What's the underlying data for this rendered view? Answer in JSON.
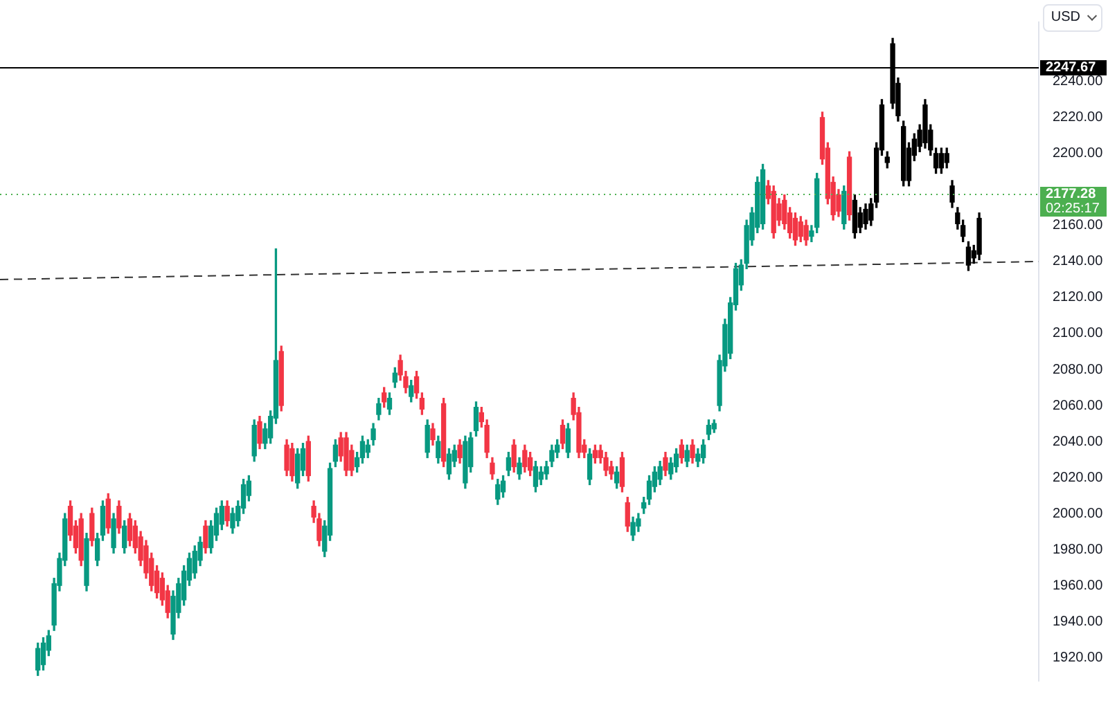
{
  "chart_data": {
    "type": "candlestick",
    "categories": [
      null,
      null,
      null,
      null,
      null,
      null,
      null,
      null,
      null,
      null,
      null,
      null,
      null,
      null,
      null,
      null,
      null,
      null,
      null,
      null,
      null,
      null,
      null,
      null,
      null,
      null,
      null,
      null,
      null,
      null,
      null,
      null,
      null,
      null,
      null,
      null,
      null,
      null,
      null,
      null,
      null,
      null,
      null,
      null,
      null,
      null,
      null,
      null,
      null,
      null,
      null,
      null,
      null,
      null,
      null,
      null,
      null,
      null,
      null,
      null,
      null,
      null,
      null,
      null,
      null,
      null,
      null,
      null,
      null,
      null,
      null,
      null,
      null,
      null,
      null,
      null,
      null,
      null,
      null,
      null,
      null,
      null,
      null,
      null,
      null,
      null,
      null,
      null,
      null,
      null,
      null,
      null,
      null,
      null,
      null,
      null,
      null,
      null,
      null,
      null,
      null,
      null,
      null,
      null,
      null,
      null,
      null,
      null,
      null,
      null,
      null,
      null,
      null,
      null,
      null,
      null,
      null,
      null,
      null,
      null,
      null,
      null,
      null,
      null,
      null,
      null,
      null,
      null,
      null,
      null,
      null,
      null,
      null,
      null,
      null,
      null,
      null,
      null,
      null,
      null,
      null,
      null,
      null,
      null,
      null,
      null,
      null,
      null,
      null,
      null,
      null,
      null,
      null,
      null,
      null,
      null,
      null,
      null,
      null,
      null,
      null,
      null,
      null,
      null,
      null,
      null,
      null,
      null,
      null,
      null,
      null,
      null,
      null,
      null,
      null,
      null,
      null,
      null,
      null,
      null,
      null,
      null,
      null,
      null,
      null,
      null,
      null,
      null,
      null,
      null,
      null,
      null,
      null
    ],
    "ohlc": [
      null,
      null,
      null,
      null,
      null,
      null,
      null,
      [
        1913,
        1928,
        1910,
        1925
      ],
      [
        1916,
        1931,
        1913,
        1928
      ],
      [
        1924,
        1935,
        1921,
        1932
      ],
      [
        1938,
        1964,
        1935,
        1961
      ],
      [
        1960,
        1978,
        1957,
        1975
      ],
      [
        1974,
        2000,
        1971,
        1997
      ],
      [
        2004,
        2007,
        1985,
        1988
      ],
      [
        1993,
        1996,
        1978,
        1981
      ],
      [
        1997,
        2000,
        1971,
        1974
      ],
      [
        1960,
        1989,
        1957,
        1986
      ],
      [
        2000,
        2003,
        1982,
        1985
      ],
      [
        1974,
        1989,
        1971,
        1986
      ],
      [
        1988,
        2007,
        1985,
        2004
      ],
      [
        2008,
        2011,
        1989,
        1992
      ],
      [
        1981,
        2000,
        1978,
        1997
      ],
      [
        2004,
        2007,
        1989,
        1992
      ],
      [
        1981,
        1996,
        1978,
        1993
      ],
      [
        1997,
        2000,
        1982,
        1985
      ],
      [
        1993,
        1996,
        1978,
        1981
      ],
      [
        1987,
        1990,
        1971,
        1974
      ],
      [
        1982,
        1985,
        1964,
        1967
      ],
      [
        1975,
        1978,
        1957,
        1960
      ],
      [
        1968,
        1971,
        1953,
        1956
      ],
      [
        1964,
        1967,
        1949,
        1952
      ],
      [
        1957,
        1960,
        1942,
        1945
      ],
      [
        1933,
        1957,
        1930,
        1954
      ],
      [
        1945,
        1964,
        1942,
        1961
      ],
      [
        1952,
        1971,
        1949,
        1968
      ],
      [
        1963,
        1978,
        1960,
        1975
      ],
      [
        1967,
        1982,
        1964,
        1979
      ],
      [
        1974,
        1987,
        1971,
        1984
      ],
      [
        1993,
        1996,
        1978,
        1981
      ],
      [
        1981,
        1996,
        1978,
        1993
      ],
      [
        1988,
        2003,
        1985,
        2000
      ],
      [
        1994,
        2007,
        1991,
        2004
      ],
      [
        2004,
        2007,
        1993,
        1996
      ],
      [
        1992,
        2003,
        1989,
        2000
      ],
      [
        1996,
        2007,
        1993,
        2004
      ],
      [
        2003,
        2019,
        2000,
        2016
      ],
      [
        2010,
        2021,
        2007,
        2018
      ],
      [
        2032,
        2052,
        2029,
        2049
      ],
      [
        2051,
        2054,
        2036,
        2039
      ],
      [
        2039,
        2050,
        2036,
        2047
      ],
      [
        2042,
        2057,
        2039,
        2054
      ],
      [
        2053,
        2147,
        2050,
        2085
      ],
      [
        2090,
        2093,
        2057,
        2060
      ],
      [
        2038,
        2041,
        2021,
        2024
      ],
      [
        2036,
        2039,
        2018,
        2021
      ],
      [
        2017,
        2036,
        2014,
        2033
      ],
      [
        2024,
        2039,
        2021,
        2036
      ],
      [
        2040,
        2043,
        2018,
        2021
      ],
      [
        2004,
        2007,
        1995,
        1998
      ],
      [
        1997,
        2000,
        1982,
        1985
      ],
      [
        1979,
        1996,
        1976,
        1993
      ],
      [
        1988,
        2028,
        1985,
        2025
      ],
      [
        2029,
        2041,
        2026,
        2038
      ],
      [
        2042,
        2045,
        2029,
        2032
      ],
      [
        2042,
        2045,
        2021,
        2024
      ],
      [
        2035,
        2038,
        2021,
        2024
      ],
      [
        2026,
        2034,
        2023,
        2031
      ],
      [
        2031,
        2043,
        2028,
        2040
      ],
      [
        2034,
        2041,
        2031,
        2038
      ],
      [
        2041,
        2050,
        2038,
        2047
      ],
      [
        2055,
        2064,
        2052,
        2061
      ],
      [
        2067,
        2070,
        2059,
        2062
      ],
      [
        2058,
        2067,
        2055,
        2064
      ],
      [
        2073,
        2081,
        2070,
        2078
      ],
      [
        2085,
        2088,
        2074,
        2077
      ],
      [
        2076,
        2079,
        2067,
        2070
      ],
      [
        2065,
        2074,
        2062,
        2071
      ],
      [
        2076,
        2079,
        2064,
        2067
      ],
      [
        2064,
        2067,
        2055,
        2058
      ],
      [
        2034,
        2052,
        2031,
        2049
      ],
      [
        2047,
        2050,
        2038,
        2041
      ],
      [
        2031,
        2043,
        2028,
        2040
      ],
      [
        2061,
        2064,
        2026,
        2029
      ],
      [
        2022,
        2036,
        2019,
        2033
      ],
      [
        2029,
        2038,
        2026,
        2035
      ],
      [
        2038,
        2041,
        2028,
        2031
      ],
      [
        2017,
        2043,
        2014,
        2040
      ],
      [
        2026,
        2045,
        2023,
        2042
      ],
      [
        2046,
        2062,
        2043,
        2059
      ],
      [
        2056,
        2059,
        2048,
        2051
      ],
      [
        2049,
        2052,
        2031,
        2034
      ],
      [
        2028,
        2031,
        2019,
        2022
      ],
      [
        2008,
        2019,
        2005,
        2016
      ],
      [
        2012,
        2021,
        2009,
        2018
      ],
      [
        2024,
        2034,
        2021,
        2031
      ],
      [
        2038,
        2041,
        2023,
        2026
      ],
      [
        2022,
        2031,
        2019,
        2028
      ],
      [
        2035,
        2038,
        2023,
        2026
      ],
      [
        2031,
        2034,
        2021,
        2024
      ],
      [
        2015,
        2029,
        2012,
        2026
      ],
      [
        2019,
        2026,
        2016,
        2023
      ],
      [
        2022,
        2029,
        2019,
        2026
      ],
      [
        2029,
        2038,
        2026,
        2035
      ],
      [
        2034,
        2041,
        2031,
        2038
      ],
      [
        2049,
        2052,
        2036,
        2039
      ],
      [
        2034,
        2050,
        2031,
        2047
      ],
      [
        2064,
        2067,
        2052,
        2055
      ],
      [
        2056,
        2059,
        2031,
        2034
      ],
      [
        2038,
        2041,
        2031,
        2034
      ],
      [
        2019,
        2036,
        2016,
        2033
      ],
      [
        2035,
        2038,
        2028,
        2031
      ],
      [
        2035,
        2038,
        2028,
        2031
      ],
      [
        2031,
        2034,
        2021,
        2024
      ],
      [
        2026,
        2029,
        2019,
        2022
      ],
      [
        2017,
        2026,
        2014,
        2023
      ],
      [
        2031,
        2034,
        2012,
        2015
      ],
      [
        2006,
        2009,
        1990,
        1993
      ],
      [
        1988,
        1998,
        1985,
        1995
      ],
      [
        1993,
        2000,
        1990,
        1997
      ],
      [
        2003,
        2009,
        2000,
        2006
      ],
      [
        2008,
        2021,
        2005,
        2018
      ],
      [
        2015,
        2026,
        2012,
        2023
      ],
      [
        2019,
        2029,
        2016,
        2026
      ],
      [
        2031,
        2034,
        2021,
        2024
      ],
      [
        2022,
        2031,
        2019,
        2028
      ],
      [
        2026,
        2036,
        2023,
        2033
      ],
      [
        2038,
        2041,
        2028,
        2031
      ],
      [
        2029,
        2038,
        2026,
        2035
      ],
      [
        2038,
        2041,
        2028,
        2031
      ],
      [
        2029,
        2036,
        2026,
        2033
      ],
      [
        2031,
        2041,
        2028,
        2038
      ],
      [
        2044,
        2052,
        2041,
        2049
      ],
      [
        2047,
        2052,
        2045,
        2050
      ],
      [
        2060,
        2088,
        2057,
        2085
      ],
      [
        2082,
        2108,
        2079,
        2105
      ],
      [
        2089,
        2120,
        2086,
        2117
      ],
      [
        2116,
        2139,
        2113,
        2136
      ],
      [
        2127,
        2141,
        2124,
        2138
      ],
      [
        2139,
        2163,
        2136,
        2160
      ],
      [
        2152,
        2170,
        2149,
        2167
      ],
      [
        2159,
        2187,
        2156,
        2184
      ],
      [
        2161,
        2194,
        2158,
        2191
      ],
      [
        2182,
        2185,
        2172,
        2175
      ],
      [
        2179,
        2182,
        2153,
        2156
      ],
      [
        2172,
        2175,
        2160,
        2163
      ],
      [
        2174,
        2177,
        2158,
        2161
      ],
      [
        2167,
        2170,
        2153,
        2156
      ],
      [
        2164,
        2167,
        2149,
        2152
      ],
      [
        2162,
        2165,
        2151,
        2154
      ],
      [
        2160,
        2163,
        2149,
        2152
      ],
      [
        2154,
        2160,
        2151,
        2157
      ],
      [
        2159,
        2189,
        2156,
        2186
      ],
      [
        2220,
        2223,
        2194,
        2197
      ],
      [
        2203,
        2206,
        2172,
        2175
      ],
      [
        2184,
        2187,
        2163,
        2166
      ],
      [
        2177,
        2180,
        2165,
        2168
      ],
      [
        2161,
        2182,
        2158,
        2179
      ],
      [
        2198,
        2201,
        2163,
        2166
      ],
      [
        2174,
        2177,
        2153,
        2156
      ],
      [
        2159,
        2170,
        2156,
        2167
      ],
      [
        2161,
        2172,
        2158,
        2169
      ],
      [
        2163,
        2175,
        2160,
        2172
      ],
      [
        2173,
        2206,
        2170,
        2203
      ],
      [
        2227,
        2230,
        2199,
        2202
      ],
      [
        2195,
        2201,
        2192,
        2198
      ],
      [
        2261,
        2264,
        2225,
        2228
      ],
      [
        2239,
        2242,
        2218,
        2221
      ],
      [
        2215,
        2218,
        2182,
        2185
      ],
      [
        2185,
        2206,
        2182,
        2203
      ],
      [
        2199,
        2211,
        2196,
        2208
      ],
      [
        2204,
        2216,
        2201,
        2213
      ],
      [
        2227,
        2230,
        2203,
        2206
      ],
      [
        2213,
        2216,
        2199,
        2202
      ],
      [
        2200,
        2203,
        2189,
        2192
      ],
      [
        2192,
        2203,
        2189,
        2200
      ],
      [
        2200,
        2203,
        2192,
        2195
      ],
      [
        2182,
        2185,
        2170,
        2173
      ],
      [
        2167,
        2170,
        2158,
        2161
      ],
      [
        2160,
        2163,
        2151,
        2154
      ],
      [
        2138,
        2151,
        2135,
        2148
      ],
      [
        2142,
        2149,
        2139,
        2146
      ],
      [
        2144,
        2167,
        2141,
        2164
      ],
      null,
      null,
      null,
      null,
      null,
      null,
      null,
      null,
      null,
      null,
      null
    ],
    "colors": [
      null,
      null,
      null,
      null,
      null,
      null,
      null,
      "#089981",
      "#089981",
      "#089981",
      "#089981",
      "#089981",
      "#089981",
      "#f23645",
      "#f23645",
      "#f23645",
      "#089981",
      "#f23645",
      "#089981",
      "#089981",
      "#f23645",
      "#089981",
      "#f23645",
      "#089981",
      "#f23645",
      "#f23645",
      "#f23645",
      "#f23645",
      "#f23645",
      "#f23645",
      "#f23645",
      "#f23645",
      "#089981",
      "#089981",
      "#089981",
      "#089981",
      "#089981",
      "#089981",
      "#f23645",
      "#089981",
      "#089981",
      "#089981",
      "#f23645",
      "#089981",
      "#089981",
      "#089981",
      "#089981",
      "#089981",
      "#f23645",
      "#089981",
      "#089981",
      "#089981",
      "#f23645",
      "#f23645",
      "#f23645",
      "#089981",
      "#089981",
      "#f23645",
      "#f23645",
      "#f23645",
      "#089981",
      "#089981",
      "#089981",
      "#f23645",
      "#f23645",
      "#f23645",
      "#089981",
      "#089981",
      "#089981",
      "#089981",
      "#089981",
      "#f23645",
      "#089981",
      "#089981",
      "#f23645",
      "#f23645",
      "#089981",
      "#f23645",
      "#f23645",
      "#089981",
      "#f23645",
      "#089981",
      "#f23645",
      "#089981",
      "#089981",
      "#f23645",
      "#089981",
      "#089981",
      "#089981",
      "#f23645",
      "#f23645",
      "#f23645",
      "#089981",
      "#089981",
      "#089981",
      "#f23645",
      "#089981",
      "#f23645",
      "#f23645",
      "#089981",
      "#089981",
      "#089981",
      "#089981",
      "#089981",
      "#f23645",
      "#089981",
      "#f23645",
      "#f23645",
      "#f23645",
      "#089981",
      "#f23645",
      "#f23645",
      "#f23645",
      "#f23645",
      "#089981",
      "#f23645",
      "#f23645",
      "#089981",
      "#089981",
      "#089981",
      "#089981",
      "#089981",
      "#089981",
      "#f23645",
      "#089981",
      "#089981",
      "#f23645",
      "#089981",
      "#f23645",
      "#089981",
      "#089981",
      "#089981",
      "#089981",
      "#089981",
      "#089981",
      "#089981",
      "#089981",
      "#089981",
      "#089981",
      "#089981",
      "#089981",
      "#089981",
      "#f23645",
      "#f23645",
      "#f23645",
      "#f23645",
      "#f23645",
      "#f23645",
      "#f23645",
      "#f23645",
      "#089981",
      "#089981",
      "#f23645",
      "#f23645",
      "#f23645",
      "#f23645",
      "#089981",
      "#f23645",
      "#000000",
      "#000000",
      "#000000",
      "#000000",
      "#000000",
      "#000000",
      "#000000",
      "#000000",
      "#000000",
      "#000000",
      "#000000",
      "#000000",
      "#000000",
      "#000000",
      "#000000",
      "#000000",
      "#000000",
      "#000000",
      "#000000",
      "#000000",
      "#000000",
      "#000000",
      "#000000",
      "#000000",
      null,
      null,
      null,
      null,
      null,
      null,
      null,
      null,
      null,
      null,
      null
    ],
    "series": [
      {
        "type": "line",
        "color": "#333333",
        "line_style": "dashed",
        "values": [
          2130,
          null,
          null,
          null,
          null,
          null,
          null,
          null,
          null,
          null,
          null,
          null,
          null,
          null,
          null,
          null,
          null,
          null,
          null,
          null,
          null,
          null,
          null,
          null,
          null,
          null,
          null,
          null,
          null,
          null,
          null,
          null,
          null,
          null,
          null,
          null,
          null,
          null,
          null,
          null,
          null,
          null,
          null,
          null,
          null,
          null,
          null,
          null,
          null,
          null,
          null,
          null,
          null,
          null,
          null,
          null,
          null,
          null,
          null,
          null,
          null,
          null,
          null,
          null,
          null,
          null,
          null,
          null,
          null,
          null,
          null,
          null,
          null,
          null,
          null,
          null,
          null,
          null,
          null,
          null,
          null,
          null,
          null,
          null,
          null,
          null,
          null,
          null,
          null,
          null,
          null,
          null,
          null,
          null,
          null,
          null,
          null,
          null,
          null,
          null,
          null,
          null,
          null,
          null,
          null,
          null,
          null,
          null,
          null,
          null,
          null,
          null,
          null,
          null,
          null,
          null,
          null,
          null,
          null,
          null,
          null,
          null,
          null,
          null,
          null,
          null,
          null,
          null,
          null,
          null,
          null,
          null,
          null,
          null,
          null,
          null,
          null,
          null,
          null,
          null,
          null,
          null,
          null,
          null,
          null,
          null,
          null,
          null,
          null,
          null,
          null,
          null,
          null,
          null,
          null,
          null,
          null,
          null,
          null,
          null,
          null,
          null,
          null,
          null,
          null,
          null,
          null,
          null,
          null,
          null,
          null,
          null,
          null,
          null,
          null,
          null,
          null,
          null,
          null,
          null,
          null,
          null,
          null,
          null,
          null,
          null,
          null,
          null,
          null,
          null,
          null,
          null,
          2140
        ]
      }
    ],
    "ylim": [
      1907,
      2273
    ],
    "yticks": [
      {
        "value": 1920,
        "label": "1920.00"
      },
      {
        "value": 1940,
        "label": "1940.00"
      },
      {
        "value": 1960,
        "label": "1960.00"
      },
      {
        "value": 1980,
        "label": "1980.00"
      },
      {
        "value": 2000,
        "label": "2000.00"
      },
      {
        "value": 2020,
        "label": "2020.00"
      },
      {
        "value": 2040,
        "label": "2040.00"
      },
      {
        "value": 2060,
        "label": "2060.00"
      },
      {
        "value": 2080,
        "label": "2080.00"
      },
      {
        "value": 2100,
        "label": "2100.00"
      },
      {
        "value": 2120,
        "label": "2120.00"
      },
      {
        "value": 2140,
        "label": "2140.00"
      },
      {
        "value": 2160,
        "label": "2160.00"
      },
      {
        "value": 2200,
        "label": "2200.00"
      },
      {
        "value": 2220,
        "label": "2220.00"
      },
      {
        "value": 2240,
        "label": "2240.00"
      }
    ],
    "ref_lines": [
      {
        "axis": "y",
        "value": 2247.67,
        "label": "2247.67",
        "color": "#000000",
        "line_style": "solid"
      },
      {
        "axis": "y",
        "value": 2177.28,
        "label": "2177.28\n02:25:17",
        "color": "#4caf50",
        "line_style": "dotted"
      }
    ],
    "annotations": [
      "USD"
    ],
    "tick_labels": "y",
    "legend": false,
    "grid": false
  }
}
